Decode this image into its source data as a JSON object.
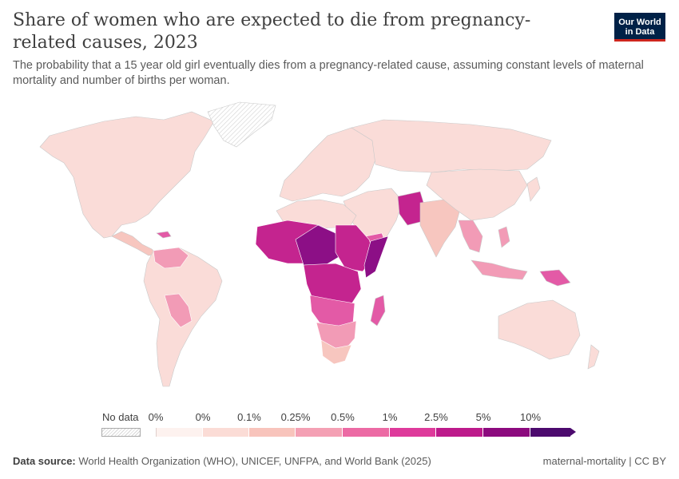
{
  "header": {
    "title": "Share of women who are expected to die from pregnancy-related causes, 2023",
    "subtitle": "The probability that a 15 year old girl eventually dies from a pregnancy-related cause, assuming constant levels of maternal mortality and number of births per woman.",
    "logo_line1": "Our World",
    "logo_line2": "in Data"
  },
  "legend": {
    "no_data_label": "No data",
    "ticks": [
      "0%",
      "0%",
      "0.1%",
      "0.25%",
      "0.5%",
      "1%",
      "2.5%",
      "5%",
      "10%"
    ],
    "colors": [
      "#fdf2ef",
      "#fbdcd6",
      "#f8c4bc",
      "#f4a0b4",
      "#ec6aa4",
      "#de3a9b",
      "#bd1a8b",
      "#8c0a7e",
      "#4c0a6e"
    ]
  },
  "footer": {
    "source_label": "Data source:",
    "source_text": "World Health Organization (WHO), UNICEF, UNFPA, and World Bank (2025)",
    "right_text": "maternal-mortality | CC BY"
  },
  "map_colors": {
    "very_low": "#fadcd8",
    "low": "#f7c6bf",
    "mid": "#f29bb6",
    "high": "#e35aa6",
    "very_high": "#c4248f",
    "extreme": "#8c0f86",
    "no_data_stroke": "#cfcfcf"
  }
}
